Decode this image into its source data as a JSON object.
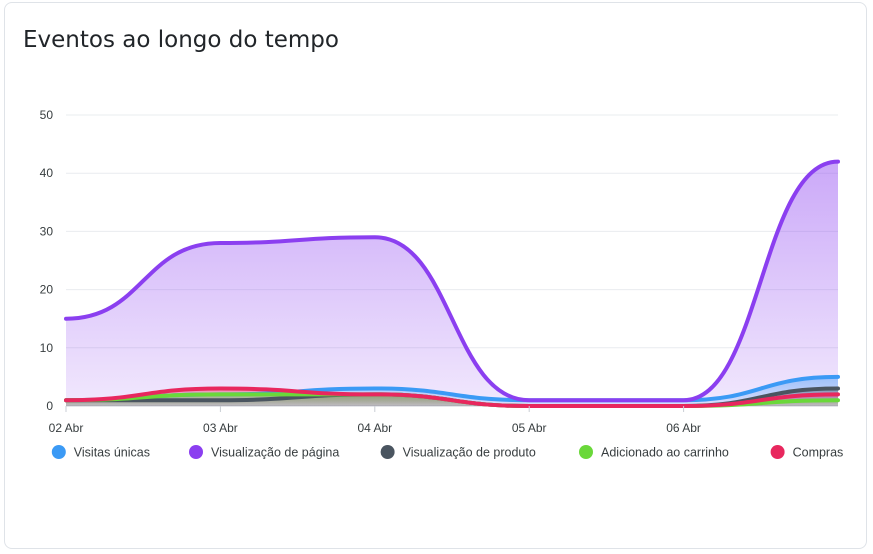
{
  "card": {
    "title": "Eventos ao longo do tempo"
  },
  "chart_data": {
    "type": "area",
    "title": "Eventos ao longo do tempo",
    "x": [
      "02 Abr",
      "03 Abr",
      "04 Abr",
      "05 Abr",
      "06 Abr",
      ""
    ],
    "xlabel": "",
    "ylabel": "",
    "ylim": [
      0,
      50
    ],
    "yticks": [
      0,
      10,
      20,
      30,
      40,
      50
    ],
    "grid": true,
    "legend_position": "bottom",
    "curve": "smooth",
    "series": [
      {
        "name": "Visitas únicas",
        "color": "#3b9af5",
        "values": [
          1,
          2,
          3,
          1,
          1,
          5
        ]
      },
      {
        "name": "Visualização de página",
        "color": "#8b3ff0",
        "values": [
          15,
          28,
          29,
          1,
          1,
          42
        ]
      },
      {
        "name": "Visualização de produto",
        "color": "#4a5560",
        "values": [
          1,
          1,
          2,
          0,
          0,
          3
        ]
      },
      {
        "name": "Adicionado ao carrinho",
        "color": "#6ad83a",
        "values": [
          1,
          2,
          2,
          0,
          0,
          1
        ]
      },
      {
        "name": "Compras",
        "color": "#e8275e",
        "values": [
          1,
          3,
          2,
          0,
          0,
          2
        ]
      }
    ]
  }
}
